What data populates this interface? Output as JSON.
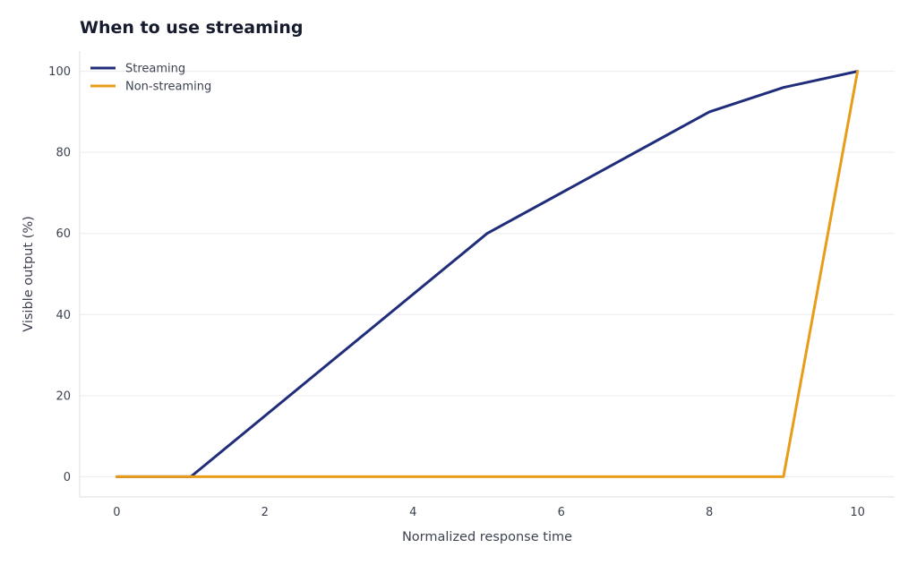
{
  "chart_data": {
    "type": "line",
    "title": "When to use streaming",
    "xlabel": "Normalized response time",
    "ylabel": "Visible output (%)",
    "xlim": [
      -0.5,
      10.5
    ],
    "ylim": [
      -5,
      105
    ],
    "xticks": [
      0,
      2,
      4,
      6,
      8,
      10
    ],
    "yticks": [
      0,
      20,
      40,
      60,
      80,
      100
    ],
    "grid": "horizontal",
    "legend": "top-left",
    "series": [
      {
        "name": "Streaming",
        "color": "#1f2d7a",
        "points": [
          [
            0,
            0
          ],
          [
            1,
            0
          ],
          [
            5,
            60
          ],
          [
            8,
            90
          ],
          [
            9,
            96
          ],
          [
            10,
            100
          ]
        ]
      },
      {
        "name": "Non-streaming",
        "color": "#e89c18",
        "points": [
          [
            0,
            0
          ],
          [
            9,
            0
          ],
          [
            10,
            100
          ]
        ]
      }
    ]
  }
}
